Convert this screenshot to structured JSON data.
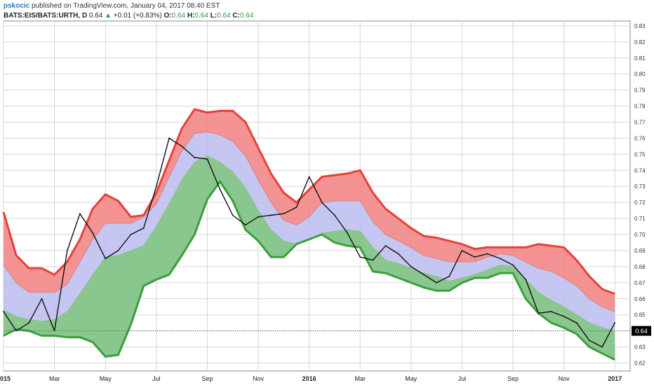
{
  "header": {
    "author": "pskocic",
    "published_text": "published on TradingView.com, January 04, 2017 08:40 EST",
    "symbol": "BATS:EIS/BATS:URTH, D",
    "last": "0.64",
    "change_arrow": "▲",
    "change": "+0.01 (+0.83%)",
    "o_label": "O:",
    "o": "0.64",
    "h_label": "H:",
    "h": "0.64",
    "l_label": "L:",
    "l": "0.64",
    "c_label": "C:",
    "c": "0.64"
  },
  "chart_data": {
    "type": "line",
    "title": "",
    "xlabel": "",
    "ylabel": "",
    "ylim": [
      0.615,
      0.833
    ],
    "y_ticks": [
      0.62,
      0.63,
      0.64,
      0.65,
      0.66,
      0.67,
      0.68,
      0.69,
      0.7,
      0.71,
      0.72,
      0.73,
      0.74,
      0.75,
      0.76,
      0.77,
      0.78,
      0.79,
      0.8,
      0.81,
      0.82,
      0.83
    ],
    "x_ticks": [
      {
        "label": "2015",
        "x": 0,
        "bold": true
      },
      {
        "label": "Mar",
        "x": 2,
        "bold": false
      },
      {
        "label": "May",
        "x": 4,
        "bold": false
      },
      {
        "label": "Jul",
        "x": 6,
        "bold": false
      },
      {
        "label": "Sep",
        "x": 8,
        "bold": false
      },
      {
        "label": "Nov",
        "x": 10,
        "bold": false
      },
      {
        "label": "2016",
        "x": 12,
        "bold": true
      },
      {
        "label": "Mar",
        "x": 14,
        "bold": false
      },
      {
        "label": "May",
        "x": 16,
        "bold": false
      },
      {
        "label": "Jul",
        "x": 18,
        "bold": false
      },
      {
        "label": "Sep",
        "x": 20,
        "bold": false
      },
      {
        "label": "Nov",
        "x": 22,
        "bold": false
      },
      {
        "label": "2017",
        "x": 24,
        "bold": true
      }
    ],
    "last_price_label": "0.64",
    "last_price": 0.64,
    "grid": true,
    "colors": {
      "upper_band": "#e8403a",
      "upper_fill": "#f28080",
      "mid_fill": "#bcbcf0",
      "lower_band": "#3c9e3c",
      "lower_fill": "#7ec77e",
      "price": "#111111",
      "grid": "#d6d6d6"
    },
    "x": [
      0,
      0.5,
      1,
      1.5,
      2,
      2.5,
      3,
      3.5,
      4,
      4.5,
      5,
      5.5,
      6,
      6.5,
      7,
      7.5,
      8,
      8.5,
      9,
      9.5,
      10,
      10.5,
      11,
      11.5,
      12,
      12.5,
      13,
      13.5,
      14,
      14.5,
      15,
      15.5,
      16,
      16.5,
      17,
      17.5,
      18,
      18.5,
      19,
      19.5,
      20,
      20.5,
      21,
      21.5,
      22,
      22.5,
      23,
      23.5,
      24
    ],
    "series": [
      {
        "values": [
          0.714,
          0.687,
          0.679,
          0.679,
          0.675,
          0.683,
          0.697,
          0.716,
          0.725,
          0.721,
          0.711,
          0.712,
          0.726,
          0.746,
          0.766,
          0.778,
          0.776,
          0.777,
          0.777,
          0.77,
          0.754,
          0.738,
          0.726,
          0.72,
          0.728,
          0.736,
          0.737,
          0.738,
          0.74,
          0.726,
          0.716,
          0.71,
          0.704,
          0.699,
          0.698,
          0.696,
          0.694,
          0.691,
          0.692,
          0.692,
          0.692,
          0.692,
          0.694,
          0.693,
          0.692,
          0.684,
          0.674,
          0.666,
          0.663
        ]
      },
      {
        "values": [
          0.681,
          0.67,
          0.664,
          0.664,
          0.664,
          0.669,
          0.683,
          0.697,
          0.707,
          0.707,
          0.707,
          0.711,
          0.719,
          0.736,
          0.752,
          0.763,
          0.764,
          0.762,
          0.758,
          0.749,
          0.734,
          0.72,
          0.709,
          0.706,
          0.711,
          0.72,
          0.721,
          0.721,
          0.721,
          0.708,
          0.7,
          0.696,
          0.692,
          0.687,
          0.685,
          0.683,
          0.683,
          0.683,
          0.686,
          0.688,
          0.687,
          0.683,
          0.679,
          0.677,
          0.673,
          0.668,
          0.66,
          0.655,
          0.652
        ]
      },
      {
        "values": [
          0.653,
          0.649,
          0.647,
          0.646,
          0.647,
          0.652,
          0.663,
          0.675,
          0.686,
          0.687,
          0.69,
          0.693,
          0.705,
          0.719,
          0.734,
          0.745,
          0.749,
          0.745,
          0.739,
          0.729,
          0.715,
          0.703,
          0.696,
          0.694,
          0.697,
          0.701,
          0.702,
          0.703,
          0.702,
          0.692,
          0.684,
          0.682,
          0.679,
          0.676,
          0.674,
          0.671,
          0.673,
          0.675,
          0.678,
          0.681,
          0.68,
          0.672,
          0.664,
          0.659,
          0.655,
          0.65,
          0.645,
          0.642,
          0.64
        ]
      },
      {
        "values": [
          0.637,
          0.641,
          0.64,
          0.637,
          0.637,
          0.636,
          0.636,
          0.633,
          0.624,
          0.625,
          0.644,
          0.668,
          0.672,
          0.675,
          0.687,
          0.7,
          0.722,
          0.733,
          0.721,
          0.703,
          0.696,
          0.686,
          0.686,
          0.694,
          0.697,
          0.7,
          0.695,
          0.693,
          0.692,
          0.677,
          0.676,
          0.673,
          0.67,
          0.667,
          0.665,
          0.665,
          0.67,
          0.673,
          0.673,
          0.676,
          0.676,
          0.66,
          0.651,
          0.645,
          0.642,
          0.638,
          0.63,
          0.626,
          0.622
        ]
      },
      {
        "values": [
          0.652,
          0.64,
          0.645,
          0.66,
          0.64,
          0.69,
          0.713,
          0.701,
          0.685,
          0.69,
          0.7,
          0.704,
          0.73,
          0.76,
          0.755,
          0.748,
          0.747,
          0.728,
          0.712,
          0.706,
          0.711,
          0.712,
          0.713,
          0.717,
          0.736,
          0.72,
          0.712,
          0.701,
          0.686,
          0.684,
          0.693,
          0.688,
          0.68,
          0.675,
          0.67,
          0.674,
          0.69,
          0.686,
          0.688,
          0.685,
          0.681,
          0.672,
          0.651,
          0.652,
          0.649,
          0.645,
          0.634,
          0.63,
          0.645
        ]
      }
    ]
  }
}
